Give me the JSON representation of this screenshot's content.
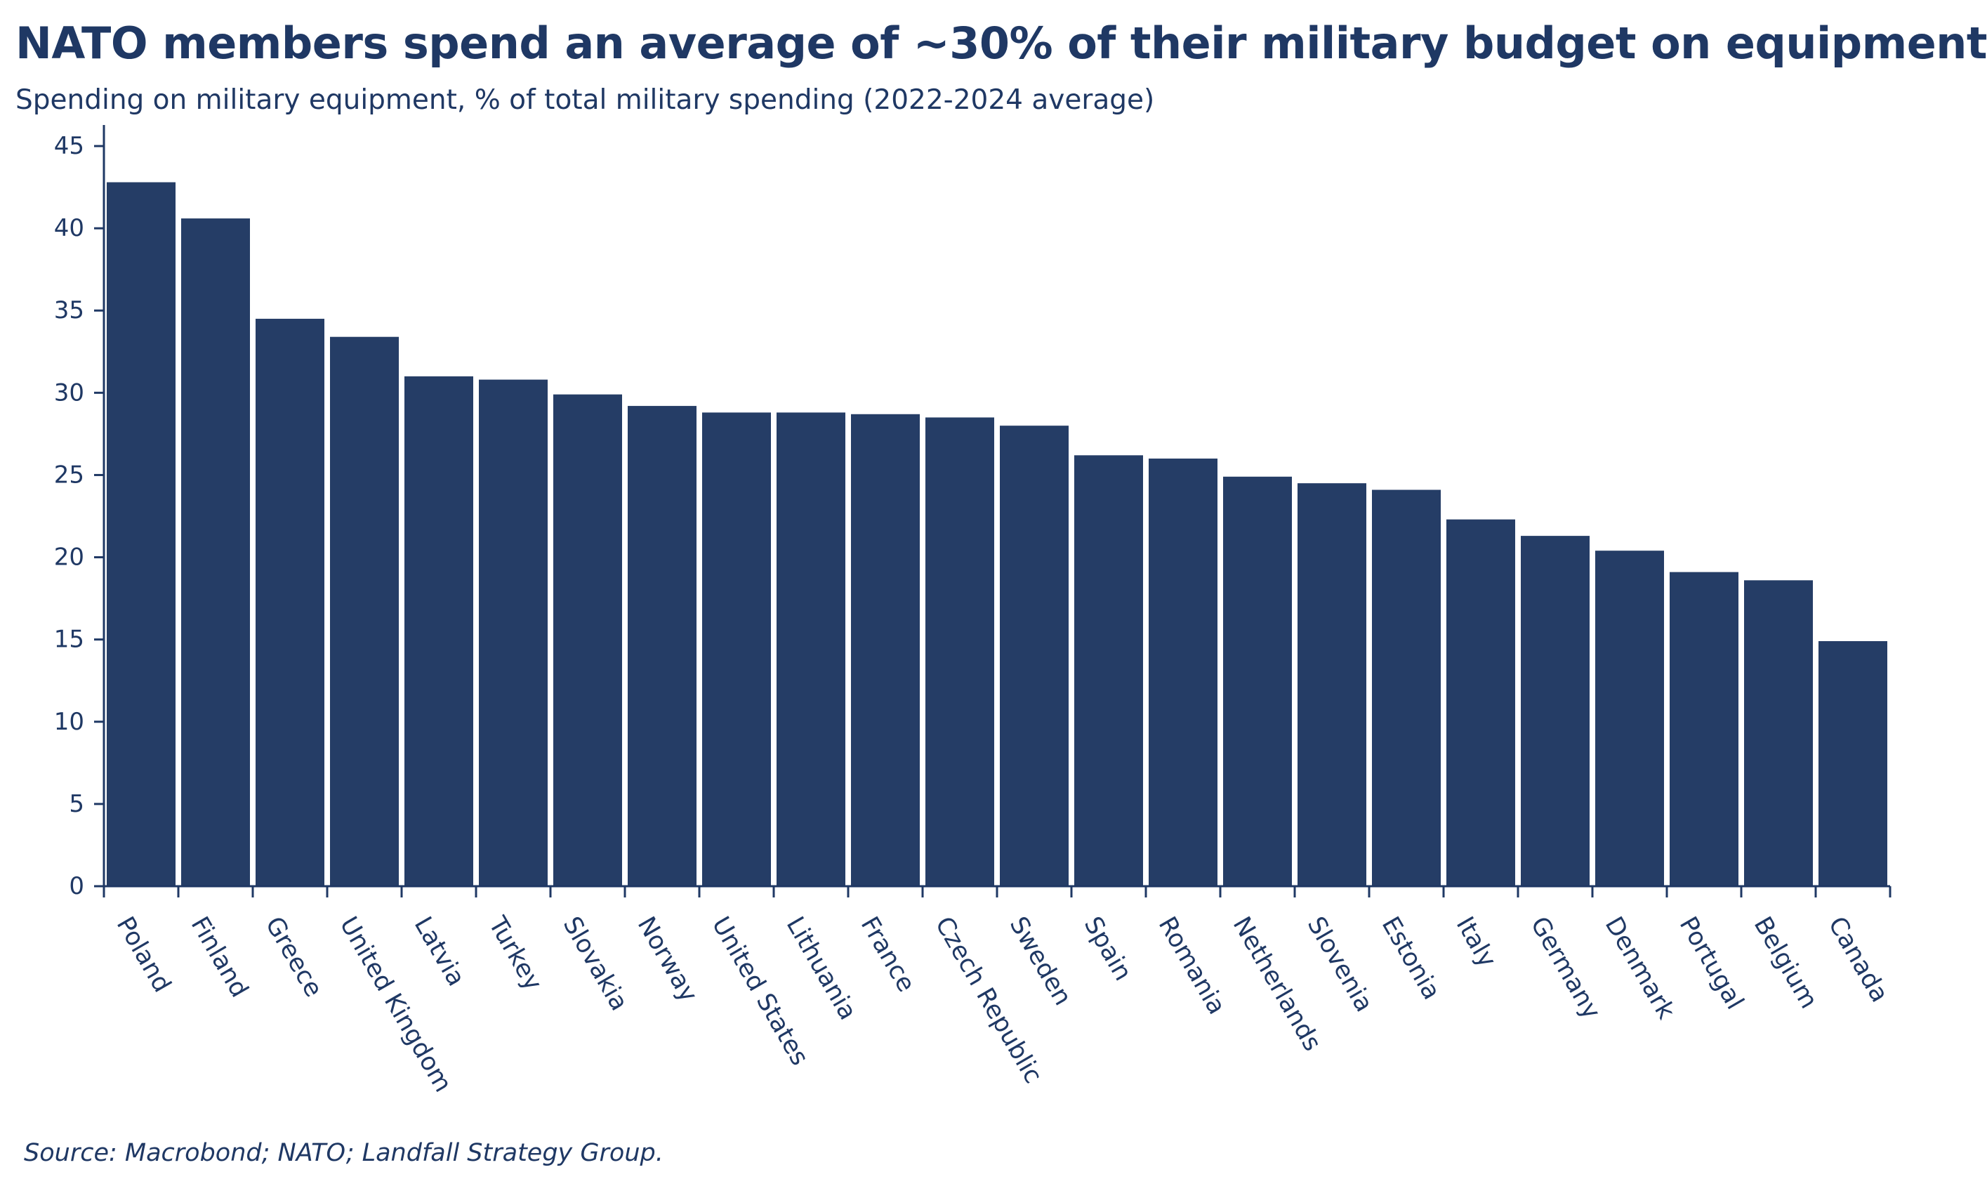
{
  "chart_data": {
    "type": "bar",
    "title": "NATO members spend an average of ~30% of their military budget on equipment",
    "subtitle": "Spending on military equipment, % of total military spending (2022-2024 average)",
    "source": "Source: Macrobond; NATO; Landfall Strategy Group.",
    "xlabel": "",
    "ylabel": "",
    "ylim": [
      0,
      45
    ],
    "yticks": [
      0,
      5,
      10,
      15,
      20,
      25,
      30,
      35,
      40,
      45
    ],
    "grid": false,
    "legend": "none",
    "bar_color": "#253d66",
    "categories": [
      "Poland",
      "Finland",
      "Greece",
      "United Kingdom",
      "Latvia",
      "Turkey",
      "Slovakia",
      "Norway",
      "United States",
      "Lithuania",
      "France",
      "Czech Republic",
      "Sweden",
      "Spain",
      "Romania",
      "Netherlands",
      "Slovenia",
      "Estonia",
      "Italy",
      "Germany",
      "Denmark",
      "Portugal",
      "Belgium",
      "Canada"
    ],
    "values": [
      42.8,
      40.6,
      34.5,
      33.4,
      31.0,
      30.8,
      29.9,
      29.2,
      28.8,
      28.8,
      28.7,
      28.5,
      28.0,
      26.2,
      26.0,
      24.9,
      24.5,
      24.1,
      22.3,
      21.3,
      20.4,
      19.1,
      18.6,
      14.9
    ]
  }
}
